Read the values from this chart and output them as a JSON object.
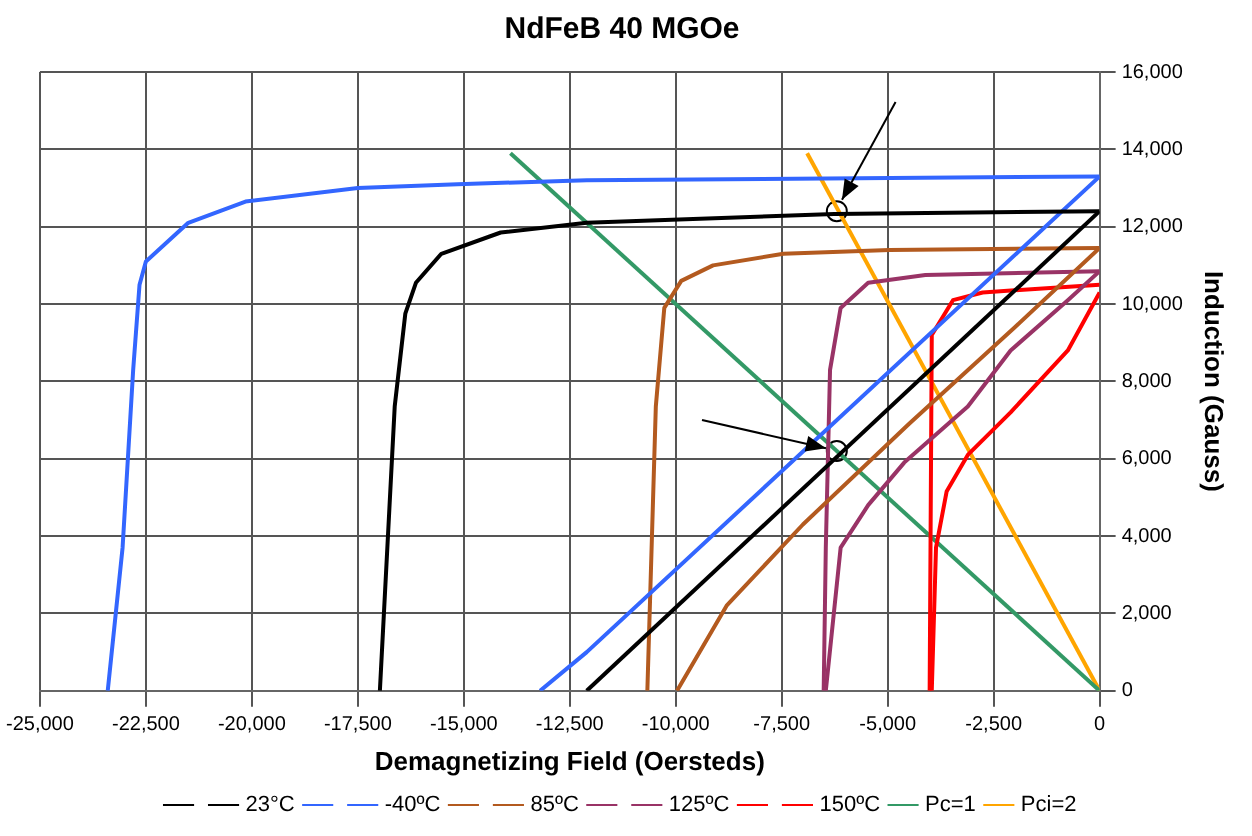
{
  "chart_data": {
    "type": "line",
    "title": "NdFeB 40 MGOe",
    "xlabel": "Demagnetizing Field (Oersteds)",
    "ylabel": "Induction (Gauss)",
    "xlim": [
      -25000,
      0
    ],
    "xticks": [
      {
        "value": -25000,
        "label": "-25,000"
      },
      {
        "value": -22500,
        "label": "-22,500"
      },
      {
        "value": -20000,
        "label": "-20,000"
      },
      {
        "value": -17500,
        "label": "-17,500"
      },
      {
        "value": -15000,
        "label": "-15,000"
      },
      {
        "value": -12500,
        "label": "-12,500"
      },
      {
        "value": -10000,
        "label": "-10,000"
      },
      {
        "value": -7500,
        "label": "-7,500"
      },
      {
        "value": -5000,
        "label": "-5,000"
      },
      {
        "value": -2500,
        "label": "-2,500"
      },
      0
    ],
    "ylim": [
      0,
      16000
    ],
    "yticks": [
      0,
      {
        "value": 2000,
        "label": "2,000"
      },
      {
        "value": 4000,
        "label": "4,000"
      },
      {
        "value": 6000,
        "label": "6,000"
      },
      {
        "value": 8000,
        "label": "8,000"
      },
      {
        "value": 10000,
        "label": "10,000"
      },
      {
        "value": 12000,
        "label": "12,000"
      },
      {
        "value": 14000,
        "label": "14,000"
      },
      {
        "value": 16000,
        "label": "16,000"
      }
    ],
    "grid": true,
    "legend": "bottom",
    "marker": "none",
    "line_style": "solid",
    "series": [
      {
        "color": "#000000",
        "x": [
          -12100,
          0
        ],
        "values": [
          0,
          12400
        ]
      },
      {
        "name": "23°C",
        "color": "#000000",
        "x": [
          -16980,
          -16630,
          -16380,
          -16130,
          -15530,
          -14130,
          -12100,
          -6260,
          0
        ],
        "values": [
          0,
          7350,
          9750,
          10550,
          11300,
          11850,
          12100,
          12330,
          12400
        ]
      },
      {
        "color": "#3366ff",
        "x": [
          -13200,
          -12100,
          0
        ],
        "values": [
          0,
          1000,
          13300
        ]
      },
      {
        "name": "-40ºC",
        "color": "#3366ff",
        "x": [
          -23400,
          -23050,
          -22800,
          -22650,
          -22500,
          -21500,
          -20150,
          -17500,
          -15150,
          -12100,
          0
        ],
        "values": [
          0,
          3700,
          8300,
          10500,
          11100,
          12100,
          12650,
          13000,
          13100,
          13200,
          13300
        ]
      },
      {
        "color": "#b35a1f",
        "x": [
          -9970,
          -8800,
          -7000,
          -4500,
          -2000,
          0
        ],
        "values": [
          0,
          2200,
          4300,
          6900,
          9400,
          11450
        ]
      },
      {
        "name": "85ºC",
        "color": "#b35a1f",
        "x": [
          -10670,
          -10470,
          -10270,
          -9870,
          -9120,
          -7460,
          -4960,
          0
        ],
        "values": [
          0,
          7350,
          9900,
          10600,
          11000,
          11300,
          11400,
          11450
        ]
      },
      {
        "color": "#993366",
        "x": [
          -6460,
          -6110,
          -5460,
          -4610,
          -3110,
          -2100,
          -750,
          0
        ],
        "values": [
          0,
          3700,
          4800,
          5900,
          7350,
          8800,
          10100,
          10850
        ]
      },
      {
        "name": "125ºC",
        "color": "#993366",
        "x": [
          -6510,
          -6460,
          -6360,
          -6110,
          -5460,
          -4110,
          0
        ],
        "values": [
          0,
          3700,
          8300,
          9900,
          10550,
          10750,
          10850
        ]
      },
      {
        "color": "#ff0000",
        "x": [
          -3960,
          -3860,
          -3610,
          -3110,
          -2100,
          -750,
          0
        ],
        "values": [
          0,
          3700,
          5150,
          6100,
          7200,
          8800,
          10300
        ]
      },
      {
        "name": "150ºC",
        "color": "#ff0000",
        "x": [
          -4010,
          -3960,
          -3460,
          -2760,
          0
        ],
        "values": [
          0,
          9200,
          10100,
          10300,
          10500
        ]
      },
      {
        "name": "Pc=1",
        "color": "#339966",
        "x": [
          -13900,
          0
        ],
        "values": [
          13900,
          0
        ]
      },
      {
        "name": "Pci=2",
        "color": "#ffa500",
        "x": [
          -6900,
          0
        ],
        "values": [
          13900,
          0
        ]
      },
      {
        "type": "scatter",
        "marker": "circle",
        "color": "#000000",
        "x": [
          -6200,
          -6200
        ],
        "values": [
          12400,
          6200
        ]
      }
    ]
  }
}
